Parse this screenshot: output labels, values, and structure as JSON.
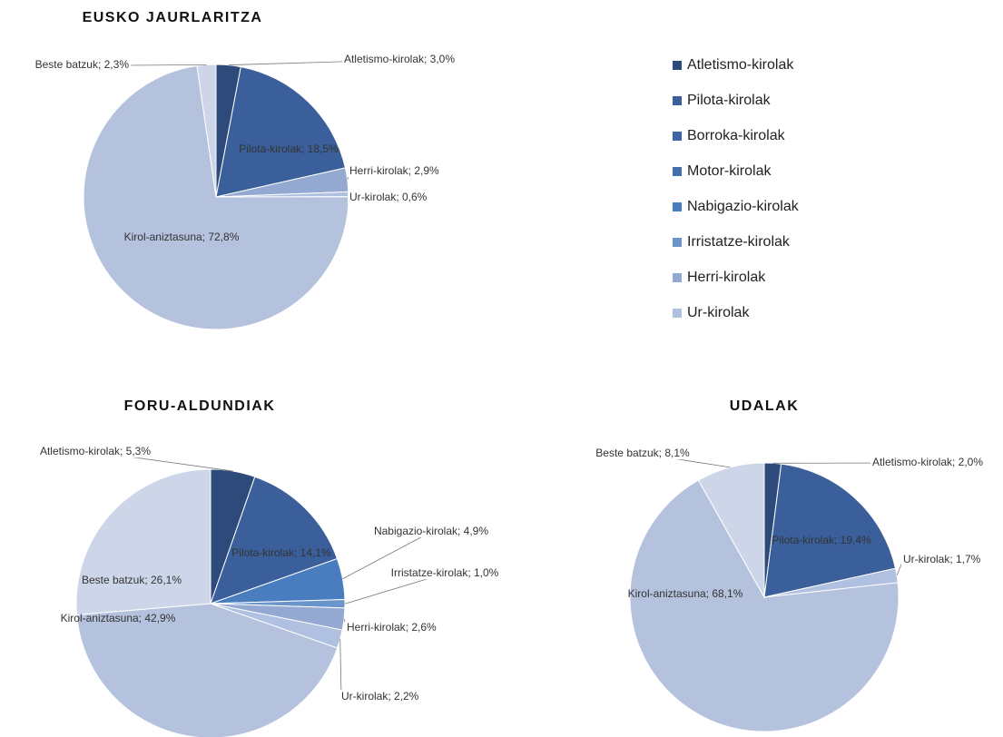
{
  "chart_data": [
    {
      "type": "pie",
      "title": "EUSKO JAURLARITZA",
      "categories": [
        "Atletismo-kirolak",
        "Pilota-kirolak",
        "Herri-kirolak",
        "Ur-kirolak",
        "Kirol-aniztasuna",
        "Beste batzuk"
      ],
      "values": [
        3.0,
        18.5,
        2.9,
        0.6,
        72.8,
        2.3
      ],
      "value_labels": [
        "Atletismo-kirolak; 3,0%",
        "Pilota-kirolak; 18,5%",
        "Herri-kirolak; 2,9%",
        "Ur-kirolak; 0,6%",
        "Kirol-aniztasuna; 72,8%",
        "Beste batzuk; 2,3%"
      ],
      "colors": [
        "#2e4a7a",
        "#3a5f9a",
        "#93a9d2",
        "#b0c0e0",
        "#b4c2de",
        "#cdd6e8"
      ]
    },
    {
      "type": "pie",
      "title": "FORU-ALDUNDIAK",
      "categories": [
        "Atletismo-kirolak",
        "Pilota-kirolak",
        "Nabigazio-kirolak",
        "Irristatze-kirolak",
        "Herri-kirolak",
        "Ur-kirolak",
        "Kirol-aniztasuna",
        "Beste batzuk"
      ],
      "values": [
        5.3,
        14.1,
        4.9,
        1.0,
        2.6,
        2.2,
        42.9,
        26.1
      ],
      "value_labels": [
        "Atletismo-kirolak; 5,3%",
        "Pilota-kirolak; 14,1%",
        "Nabigazio-kirolak; 4,9%",
        "Irristatze-kirolak; 1,0%",
        "Herri-kirolak; 2,6%",
        "Ur-kirolak; 2,2%",
        "Kirol-aniztasuna; 42,9%",
        "Beste batzuk; 26,1%"
      ],
      "colors": [
        "#2e4a7a",
        "#3a5f9a",
        "#4a7cc0",
        "#6a94cc",
        "#93a9d2",
        "#b0c0e0",
        "#b4c2de",
        "#cdd6e8"
      ]
    },
    {
      "type": "pie",
      "title": "UDALAK",
      "categories": [
        "Atletismo-kirolak",
        "Pilota-kirolak",
        "Ur-kirolak",
        "Kirol-aniztasuna",
        "Beste batzuk"
      ],
      "values": [
        2.0,
        19.4,
        1.7,
        68.1,
        8.1
      ],
      "value_labels": [
        "Atletismo-kirolak; 2,0%",
        "Pilota-kirolak; 19,4%",
        "Ur-kirolak; 1,7%",
        "Kirol-aniztasuna; 68,1%",
        "Beste batzuk; 8,1%"
      ],
      "colors": [
        "#2e4a7a",
        "#3a5f9a",
        "#b0c0e0",
        "#b4c2de",
        "#cdd6e8"
      ]
    }
  ],
  "legend": [
    {
      "name": "Atletismo-kirolak",
      "color": "#2e4a7a"
    },
    {
      "name": "Pilota-kirolak",
      "color": "#3a5f9a"
    },
    {
      "name": "Borroka-kirolak",
      "color": "#3d64a6"
    },
    {
      "name": "Motor-kirolak",
      "color": "#4470b0"
    },
    {
      "name": "Nabigazio-kirolak",
      "color": "#4a7cc0"
    },
    {
      "name": "Irristatze-kirolak",
      "color": "#6a94cc"
    },
    {
      "name": "Herri-kirolak",
      "color": "#93a9d2"
    },
    {
      "name": "Ur-kirolak",
      "color": "#b0c0e0"
    }
  ]
}
